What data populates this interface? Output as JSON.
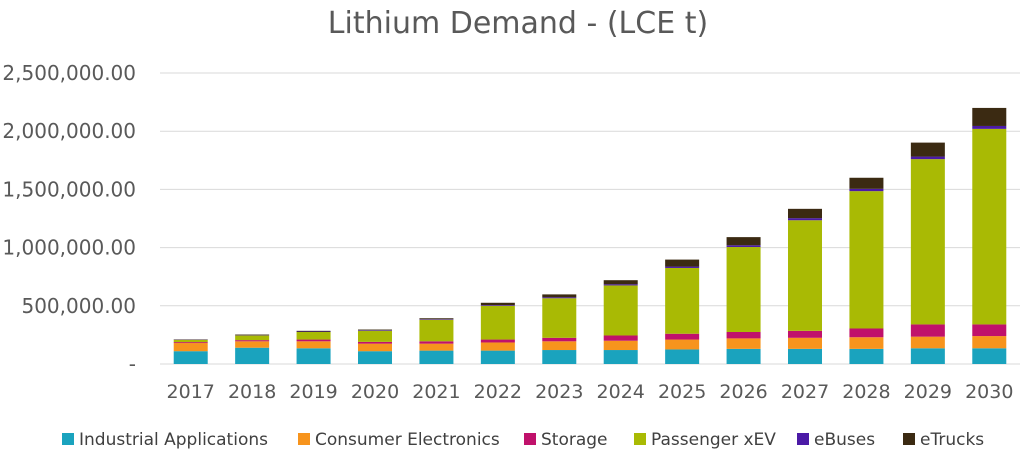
{
  "chart_data": {
    "type": "bar",
    "stacked": true,
    "title": "Lithium Demand - (LCE t)",
    "xlabel": "",
    "ylabel": "",
    "ylim": [
      0,
      2500000
    ],
    "y_ticks": [
      0,
      500000,
      1000000,
      1500000,
      2000000,
      2500000
    ],
    "y_tick_labels": [
      "-",
      "500,000.00",
      "1,000,000.00",
      "1,500,000.00",
      "2,000,000.00",
      "2,500,000.00"
    ],
    "grid": true,
    "legend_position": "bottom",
    "categories": [
      "2017",
      "2018",
      "2019",
      "2020",
      "2021",
      "2022",
      "2023",
      "2024",
      "2025",
      "2026",
      "2027",
      "2028",
      "2029",
      "2030"
    ],
    "series": [
      {
        "name": "Industrial Applications",
        "color": "#1AA3BE",
        "values": [
          110000,
          140000,
          135000,
          110000,
          115000,
          115000,
          120000,
          120000,
          125000,
          130000,
          130000,
          130000,
          135000,
          135000
        ]
      },
      {
        "name": "Consumer Electronics",
        "color": "#F7941D",
        "values": [
          70000,
          55000,
          60000,
          65000,
          60000,
          70000,
          75000,
          80000,
          85000,
          90000,
          95000,
          100000,
          100000,
          105000
        ]
      },
      {
        "name": "Storage",
        "color": "#C0116B",
        "values": [
          8000,
          10000,
          15000,
          15000,
          20000,
          25000,
          30000,
          45000,
          50000,
          55000,
          60000,
          75000,
          105000,
          100000
        ]
      },
      {
        "name": "Passenger xEV",
        "color": "#A9BA04",
        "values": [
          20000,
          40000,
          65000,
          95000,
          185000,
          290000,
          340000,
          430000,
          565000,
          730000,
          950000,
          1180000,
          1420000,
          1680000
        ]
      },
      {
        "name": "eBuses",
        "color": "#4B1AA6",
        "values": [
          2000,
          3000,
          4000,
          5000,
          5000,
          6000,
          8000,
          10000,
          12000,
          15000,
          18000,
          20000,
          22000,
          25000
        ]
      },
      {
        "name": "eTrucks",
        "color": "#3B2A12",
        "values": [
          2000,
          5000,
          6000,
          6000,
          8000,
          20000,
          25000,
          35000,
          60000,
          70000,
          80000,
          95000,
          120000,
          155000
        ]
      }
    ]
  }
}
